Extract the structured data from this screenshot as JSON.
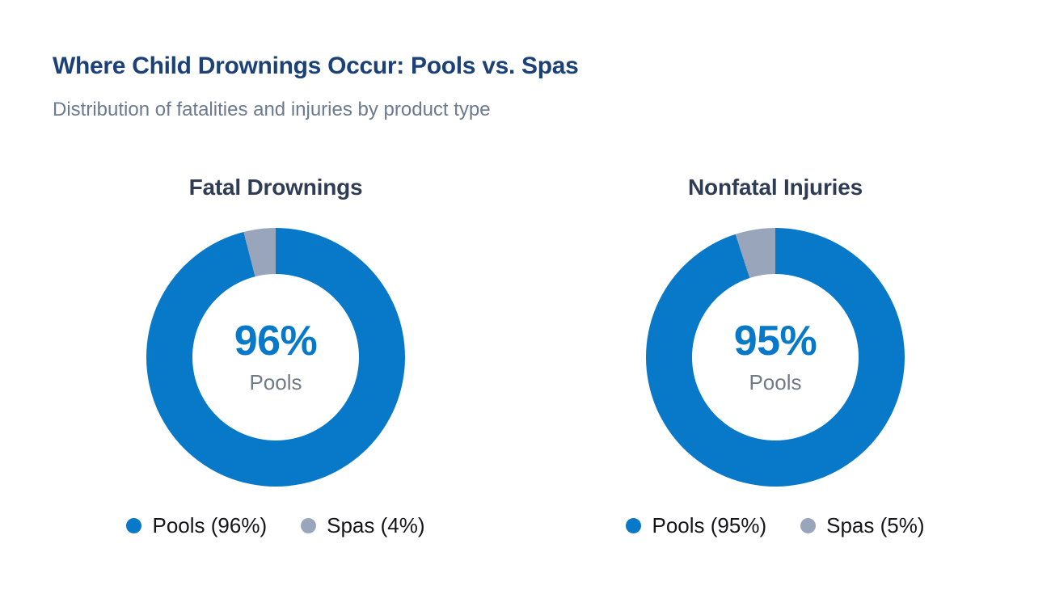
{
  "page": {
    "title": "Where Child Drownings Occur: Pools vs. Spas",
    "subtitle": "Distribution of fatalities and injuries by product type"
  },
  "colors": {
    "pools_blue": "#0878c8",
    "spas_gray": "#99a5ba",
    "title_navy": "#1b4178",
    "subtitle_gray": "#6b7a90",
    "chart_title_slate": "#303c54",
    "center_sublabel_gray": "#717a89",
    "legend_text": "#131519"
  },
  "chart_data": [
    {
      "type": "pie",
      "donut": true,
      "title": "Fatal Drownings",
      "categories": [
        "Pools",
        "Spas"
      ],
      "values": [
        96,
        4
      ],
      "unit": "%",
      "colors": [
        "#0878c8",
        "#99a5ba"
      ],
      "start_angle": "top, clockwise",
      "center_label": "96%",
      "center_sublabel": "Pools",
      "legend": [
        "Pools (96%)",
        "Spas (4%)"
      ],
      "legend_position": "bottom"
    },
    {
      "type": "pie",
      "donut": true,
      "title": "Nonfatal Injuries",
      "categories": [
        "Pools",
        "Spas"
      ],
      "values": [
        95,
        5
      ],
      "unit": "%",
      "colors": [
        "#0878c8",
        "#99a5ba"
      ],
      "start_angle": "top, clockwise",
      "center_label": "95%",
      "center_sublabel": "Pools",
      "legend": [
        "Pools (95%)",
        "Spas (5%)"
      ],
      "legend_position": "bottom"
    }
  ]
}
